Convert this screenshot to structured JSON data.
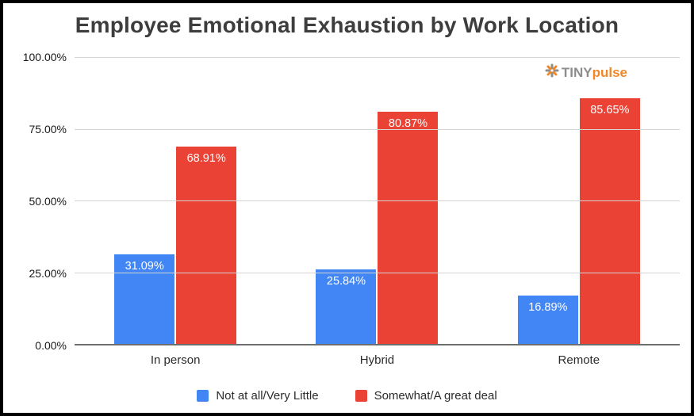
{
  "title": "Employee Emotional Exhaustion by Work Location",
  "logo": {
    "icon": "tinypulse-flower-icon",
    "brand_gray": "TINY",
    "brand_orange": "pulse",
    "gray_color": "#8d8d8d",
    "orange_color": "#f0882a"
  },
  "chart_data": {
    "type": "bar",
    "title": "Employee Emotional Exhaustion by Work Location",
    "categories": [
      "In person",
      "Hybrid",
      "Remote"
    ],
    "series": [
      {
        "name": "Not at all/Very Little",
        "color": "#4285F4",
        "values": [
          31.09,
          25.84,
          16.89
        ],
        "labels": [
          "31.09%",
          "25.84%",
          "16.89%"
        ]
      },
      {
        "name": "Somewhat/A great deal",
        "color": "#EA4335",
        "values": [
          68.91,
          80.87,
          85.65
        ],
        "labels": [
          "68.91%",
          "80.87%",
          "85.65%"
        ]
      }
    ],
    "xlabel": "",
    "ylabel": "",
    "ylim": [
      0,
      100
    ],
    "yticks": [
      "100.00%",
      "75.00%",
      "50.00%",
      "25.00%",
      "0.00%"
    ],
    "grid": true,
    "legend_position": "bottom"
  }
}
